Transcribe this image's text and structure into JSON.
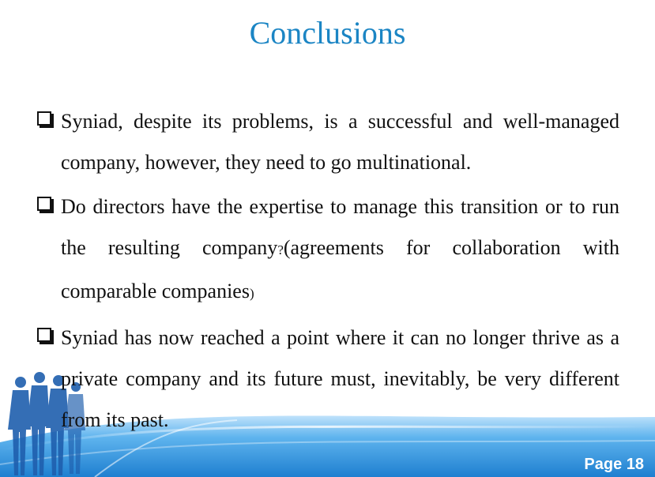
{
  "slide": {
    "title": "Conclusions",
    "bullets": [
      {
        "text": "Syniad, despite its problems, is a successful and well-managed company, however, they need to go multinational."
      },
      {
        "text_a": "Do directors have the expertise to manage this transition or to run the resulting company",
        "text_q": "?",
        "text_b": "(agreements for collaboration with comparable companies",
        "text_c": ")"
      },
      {
        "text": "Syniad has now reached a point where it can no longer thrive as a private company and its future must, inevitably, be very different from its past."
      }
    ],
    "page_number": "Page 18"
  },
  "colors": {
    "title": "#1b85c4",
    "footer_blue": "#2f8fd6",
    "people": "#1f5fae"
  },
  "icons": {
    "bullet": "checkbox-square-icon",
    "footer": "business-people-silhouettes"
  }
}
